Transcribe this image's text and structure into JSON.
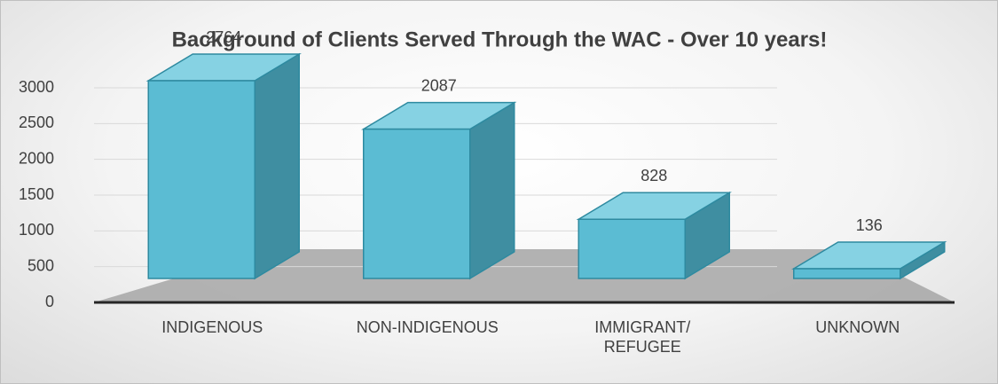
{
  "chart_data": {
    "type": "bar3d",
    "title": "Background of Clients Served Through the WAC - Over 10 years!",
    "categories": [
      "INDIGENOUS",
      "NON-INDIGENOUS",
      "IMMIGRANT/ REFUGEE",
      "UNKNOWN"
    ],
    "values": [
      2764,
      2087,
      828,
      136
    ],
    "color": "#5bbcd3",
    "ylim": [
      0,
      3000
    ],
    "yticks": [
      0,
      500,
      1000,
      1500,
      2000,
      2500,
      3000
    ],
    "grid": true
  }
}
